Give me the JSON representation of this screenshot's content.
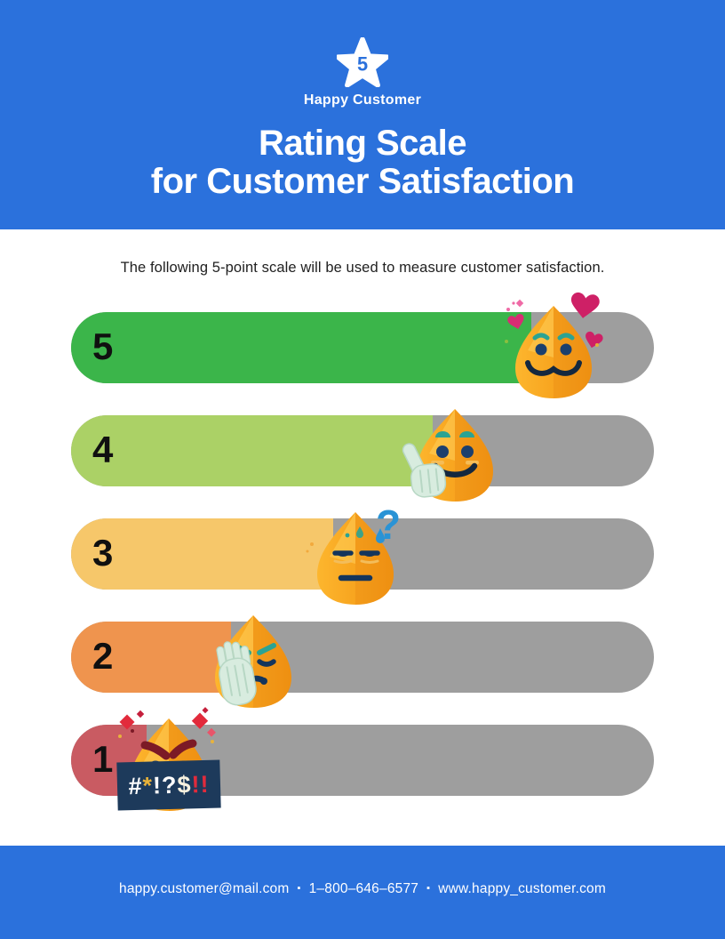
{
  "colors": {
    "header_blue": "#2b71dc",
    "track_gray": "#9e9e9e",
    "title_white": "#ffffff",
    "body_text": "#212121"
  },
  "header": {
    "logo": {
      "icon": "star-icon",
      "star_number": "5",
      "brand_name": "Happy Customer"
    },
    "title_line1": "Rating Scale",
    "title_line2": "for Customer Satisfaction"
  },
  "intro": {
    "text": "The following 5-point scale will be used to measure customer satisfaction."
  },
  "chart_data": {
    "type": "bar",
    "orientation": "horizontal",
    "title": "Rating Scale for Customer Satisfaction",
    "categories": [
      "5",
      "4",
      "3",
      "2",
      "1"
    ],
    "values": [
      79,
      62,
      45,
      27.5,
      13
    ],
    "bar_colors": [
      "#3bb54a",
      "#abd166",
      "#f6c76a",
      "#ef944e",
      "#c95b62"
    ],
    "track_color": "#9e9e9e",
    "legend": false,
    "grid": false
  },
  "scale": {
    "track_color": "#9e9e9e",
    "rows": [
      {
        "label": "5",
        "fill_percent": 79,
        "color": "#3bb54a",
        "emoji_icon": "in-love-emoji"
      },
      {
        "label": "4",
        "fill_percent": 62,
        "color": "#abd166",
        "emoji_icon": "thumbs-up-emoji"
      },
      {
        "label": "3",
        "fill_percent": 45,
        "color": "#f6c76a",
        "emoji_icon": "skeptical-emoji",
        "decoration": "?"
      },
      {
        "label": "2",
        "fill_percent": 27.5,
        "color": "#ef944e",
        "emoji_icon": "facepalm-emoji"
      },
      {
        "label": "1",
        "fill_percent": 13,
        "color": "#c95b62",
        "emoji_icon": "swearing-emoji",
        "censored_segments": [
          {
            "text": "#",
            "color": "#ffffff"
          },
          {
            "text": "*",
            "color": "#eab339"
          },
          {
            "text": "!?",
            "color": "#ffffff"
          },
          {
            "text": "$",
            "color": "#f7f1df"
          },
          {
            "text": "!!",
            "color": "#e02b3c"
          }
        ]
      }
    ]
  },
  "footer": {
    "email": "happy.customer@mail.com",
    "separator": "▪",
    "phone": "1–800–646–6577",
    "website": "www.happy_customer.com"
  }
}
